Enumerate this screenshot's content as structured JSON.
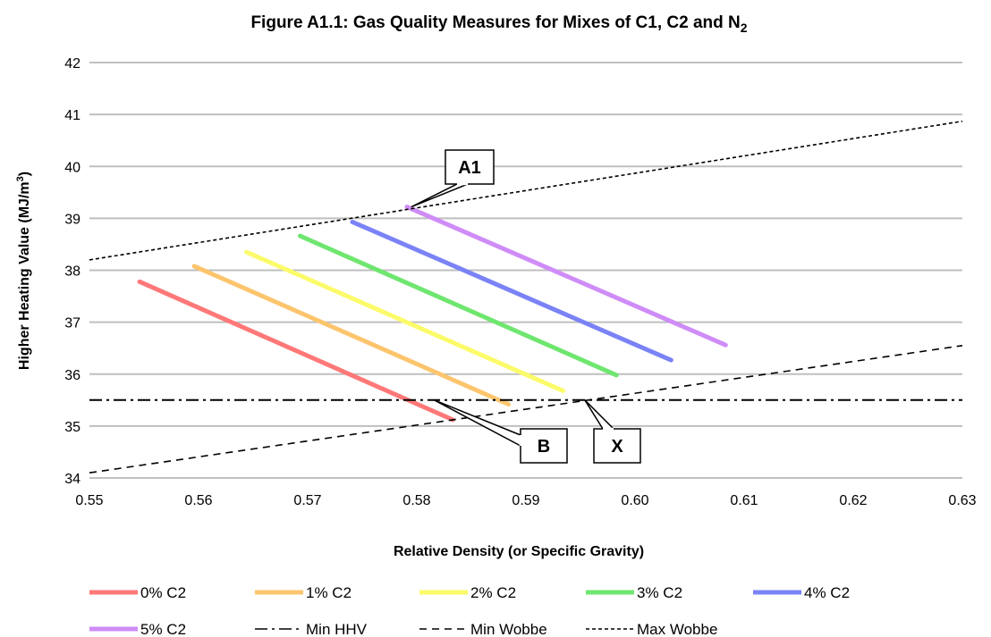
{
  "chart_data": {
    "type": "line",
    "title": "Figure A1.1: Gas Quality Measures for Mixes of C1, C2 and N",
    "title_subscript": "2",
    "xlabel": "Relative Density (or Specific Gravity)",
    "ylabel": "Higher Heating Value (MJ/m",
    "ylabel_superscript": "3",
    "ylabel_suffix": ")",
    "xlim": [
      0.55,
      0.63
    ],
    "ylim": [
      34,
      42
    ],
    "x_ticks": [
      "0.55",
      "0.56",
      "0.57",
      "0.58",
      "0.59",
      "0.60",
      "0.61",
      "0.62",
      "0.63"
    ],
    "y_ticks": [
      "34",
      "35",
      "36",
      "37",
      "38",
      "39",
      "40",
      "41",
      "42"
    ],
    "grid": "horizontal",
    "legend_position": "bottom",
    "series": [
      {
        "name": "0% C2",
        "color": "#ff7878",
        "style": "solid",
        "x": [
          0.5546,
          0.5833
        ],
        "y": [
          37.78,
          35.12
        ]
      },
      {
        "name": "1% C2",
        "color": "#fcc56d",
        "style": "solid",
        "x": [
          0.5596,
          0.5884
        ],
        "y": [
          38.08,
          35.42
        ]
      },
      {
        "name": "2% C2",
        "color": "#fbfb6a",
        "style": "solid",
        "x": [
          0.5644,
          0.5934
        ],
        "y": [
          38.35,
          35.68
        ]
      },
      {
        "name": "3% C2",
        "color": "#6fe66f",
        "style": "solid",
        "x": [
          0.5693,
          0.5983
        ],
        "y": [
          38.66,
          35.98
        ]
      },
      {
        "name": "4% C2",
        "color": "#7a83f6",
        "style": "solid",
        "x": [
          0.5741,
          0.6033
        ],
        "y": [
          38.93,
          36.27
        ]
      },
      {
        "name": "5% C2",
        "color": "#cf8cf7",
        "style": "solid",
        "x": [
          0.5791,
          0.6083
        ],
        "y": [
          39.22,
          36.56
        ]
      },
      {
        "name": "Min HHV",
        "color": "#000000",
        "style": "dashdot",
        "x": [
          0.55,
          0.63
        ],
        "y": [
          35.5,
          35.5
        ]
      },
      {
        "name": "Min Wobbe",
        "color": "#000000",
        "style": "dashed",
        "x": [
          0.55,
          0.63
        ],
        "y": [
          34.1,
          36.55
        ]
      },
      {
        "name": "Max Wobbe",
        "color": "#000000",
        "style": "dotted",
        "x": [
          0.55,
          0.63
        ],
        "y": [
          38.2,
          40.87
        ]
      }
    ],
    "annotations": [
      {
        "label": "A1",
        "x": 0.5795,
        "y": 39.22
      },
      {
        "label": "B",
        "x": 0.5816,
        "y": 35.5
      },
      {
        "label": "X",
        "x": 0.5954,
        "y": 35.5
      }
    ]
  }
}
